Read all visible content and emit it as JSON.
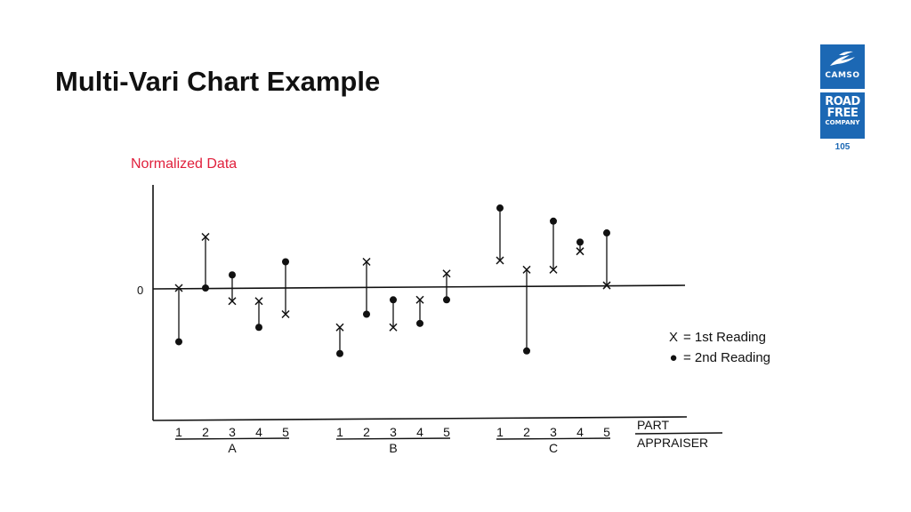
{
  "slide": {
    "title": "Multi-Vari Chart Example",
    "subtitle": "Normalized Data",
    "page_number": "105"
  },
  "logo": {
    "brand": "CAMSO",
    "line1": "ROAD",
    "line2": "FREE",
    "line3": "COMPANY"
  },
  "colors": {
    "accent_red": "#e0203c",
    "brand_blue": "#1c68b4",
    "ink": "#111111"
  },
  "chart_data": {
    "type": "scatter",
    "title": "",
    "y_zero_label": "0",
    "ylim": [
      -5,
      3.1
    ],
    "x_axis_label_parts": "PART",
    "x_axis_label_appraisers": "APPRAISER",
    "grid": false,
    "legend_position": "right",
    "legend": [
      {
        "symbol": "X",
        "label": "= 1st Reading"
      },
      {
        "symbol": "●",
        "label": "= 2nd Reading"
      }
    ],
    "appraisers": [
      {
        "name": "A",
        "parts": [
          "1",
          "2",
          "3",
          "4",
          "5"
        ],
        "first_reading": [
          0,
          1.95,
          -0.5,
          -0.5,
          -1.0
        ],
        "second_reading": [
          -2.05,
          0,
          0.5,
          -1.5,
          1.0
        ]
      },
      {
        "name": "B",
        "parts": [
          "1",
          "2",
          "3",
          "4",
          "5"
        ],
        "first_reading": [
          -1.5,
          1.0,
          -1.5,
          -0.45,
          0.55
        ],
        "second_reading": [
          -2.5,
          -1.0,
          -0.45,
          -1.35,
          -0.45
        ]
      },
      {
        "name": "C",
        "parts": [
          "1",
          "2",
          "3",
          "4",
          "5"
        ],
        "first_reading": [
          1.05,
          0.7,
          0.7,
          1.4,
          0.1
        ],
        "second_reading": [
          3.05,
          -2.4,
          2.55,
          1.75,
          2.1
        ]
      }
    ]
  }
}
